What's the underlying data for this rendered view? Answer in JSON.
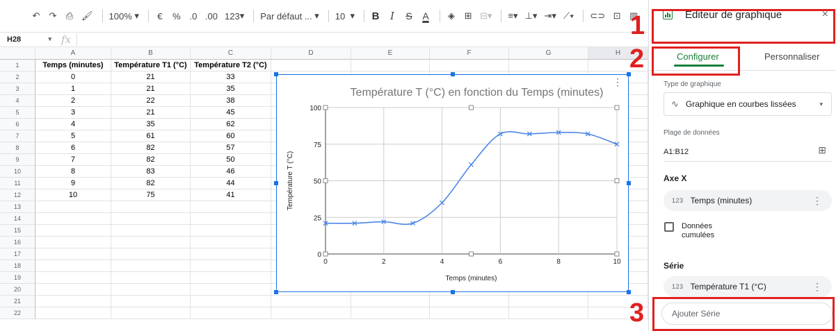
{
  "toolbar": {
    "zoom": "100%",
    "currency": "€",
    "percent": "%",
    "dec_less": ".0",
    "dec_more": ".00",
    "num_format": "123",
    "font": "Par défaut ...",
    "font_size": "10",
    "bold": "B",
    "italic": "I",
    "strike": "S",
    "text_color": "A"
  },
  "formula_bar": {
    "cell_ref": "H28",
    "fx": "fx"
  },
  "grid": {
    "columns": [
      "A",
      "B",
      "C",
      "D",
      "E",
      "F",
      "G",
      "H"
    ],
    "rows": [
      "1",
      "2",
      "3",
      "4",
      "5",
      "6",
      "7",
      "8",
      "9",
      "10",
      "11",
      "12",
      "13",
      "14",
      "15",
      "16",
      "17",
      "18",
      "19",
      "20",
      "21",
      "22"
    ],
    "header": [
      "Temps (minutes)",
      "Température T1 (°C)",
      "Température T2 (°C)"
    ],
    "data": [
      [
        "0",
        "21",
        "33"
      ],
      [
        "1",
        "21",
        "35"
      ],
      [
        "2",
        "22",
        "38"
      ],
      [
        "3",
        "21",
        "45"
      ],
      [
        "4",
        "35",
        "62"
      ],
      [
        "5",
        "61",
        "60"
      ],
      [
        "6",
        "82",
        "57"
      ],
      [
        "7",
        "82",
        "50"
      ],
      [
        "8",
        "83",
        "46"
      ],
      [
        "9",
        "82",
        "44"
      ],
      [
        "10",
        "75",
        "41"
      ]
    ]
  },
  "chart_data": {
    "type": "line",
    "title": "Température T (°C) en fonction du Temps (minutes)",
    "xlabel": "Temps (minutes)",
    "ylabel": "Température T (°C)",
    "x": [
      0,
      1,
      2,
      3,
      4,
      5,
      6,
      7,
      8,
      9,
      10
    ],
    "series": [
      {
        "values": [
          21,
          21,
          22,
          21,
          35,
          61,
          82,
          82,
          83,
          82,
          75
        ],
        "color": "#4a86e8"
      }
    ],
    "xlim": [
      0,
      10
    ],
    "ylim": [
      0,
      100
    ],
    "xticks": [
      0,
      2,
      4,
      6,
      8,
      10
    ],
    "yticks": [
      0,
      25,
      50,
      75,
      100
    ],
    "grid": true,
    "smooth": true,
    "marker": "x"
  },
  "panel": {
    "title": "Éditeur de graphique",
    "close": "×",
    "tab_configure": "Configurer",
    "tab_customize": "Personnaliser",
    "chart_type_label": "Type de graphique",
    "chart_type_value": "Graphique en courbes lissées",
    "range_label": "Plage de données",
    "range_value": "A1:B12",
    "x_axis_label": "Axe X",
    "x_axis_value": "Temps (minutes)",
    "cumulative_label": "Données cumulées",
    "series_label": "Série",
    "series_value": "Température T1 (°C)",
    "add_series": "Ajouter Série",
    "num_icon": "123"
  },
  "callouts": [
    "1",
    "2",
    "3"
  ],
  "colors": {
    "accent": "#188038",
    "selection": "#1a73e8",
    "callout": "#e0201f"
  }
}
